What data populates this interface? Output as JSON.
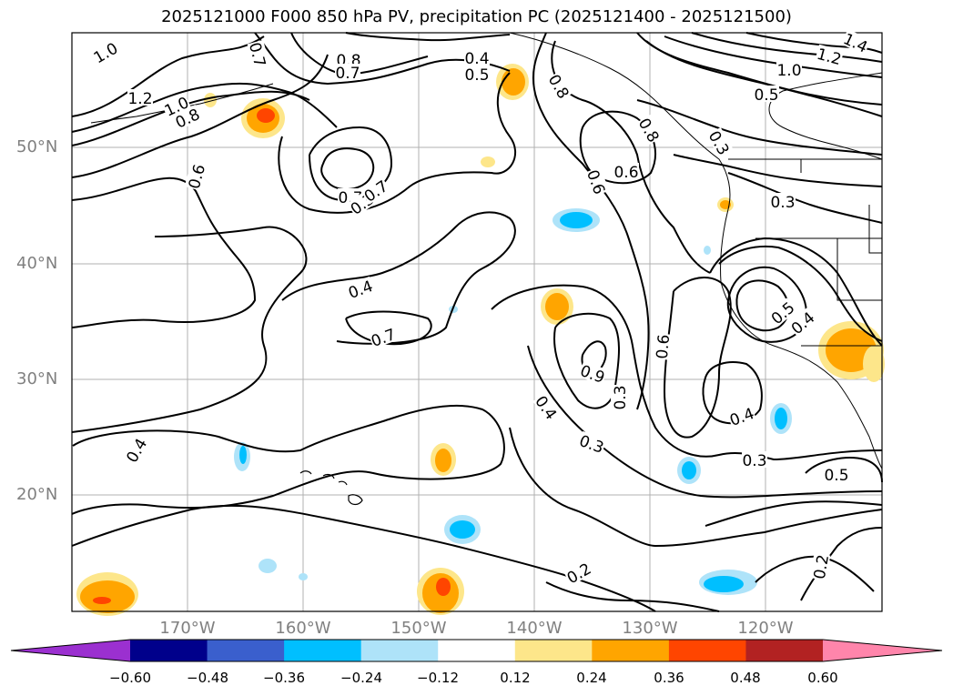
{
  "title": "2025121000 F000 850 hPa PV, precipitation PC (2025121400 - 2025121500)",
  "lat_labels": [
    "50°N",
    "40°N",
    "30°N",
    "20°N"
  ],
  "lon_labels": [
    "170°W",
    "160°W",
    "150°W",
    "140°W",
    "130°W",
    "120°W"
  ],
  "colorbar": {
    "ticks": [
      "−0.60",
      "−0.48",
      "−0.36",
      "−0.24",
      "−0.12",
      "0.12",
      "0.24",
      "0.36",
      "0.48",
      "0.60"
    ],
    "colors": [
      "#9b30d0",
      "#00008b",
      "#3a5fcd",
      "#00bfff",
      "#aee3f9",
      "#ffffff",
      "#fde68a",
      "#ffa500",
      "#ff4500",
      "#b22222",
      "#ff85ab"
    ]
  },
  "contour_labels": [
    "1.0",
    "0.7",
    "0.8",
    "0.7",
    "0.4",
    "0.5",
    "0.8",
    "1.0",
    "1.2",
    "1.4",
    "0.5",
    "1.2",
    "1.0",
    "0.8",
    "0.7",
    "0.3",
    "0.6",
    "0.7",
    "0.6",
    "0.6",
    "0.8",
    "0.3",
    "0.3",
    "0.4",
    "0.7",
    "0.9",
    "0.3",
    "0.6",
    "0.5",
    "0.4",
    "0.4",
    "0.4",
    "0.5",
    "0.3",
    "0.3",
    "0.4",
    "0.2",
    "0.2"
  ]
}
